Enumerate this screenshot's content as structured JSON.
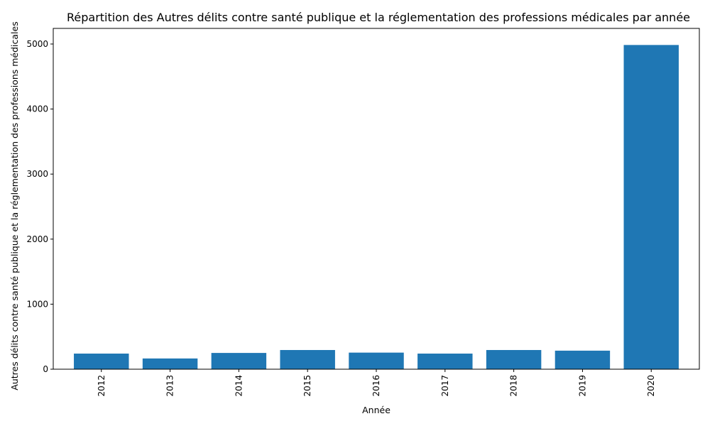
{
  "chart_data": {
    "type": "bar",
    "title": "Répartition des Autres délits contre santé publique et la réglementation des professions médicales par année",
    "xlabel": "Année",
    "ylabel": "Autres délits contre santé publique et la réglementation des professions médicales",
    "categories": [
      "2012",
      "2013",
      "2014",
      "2015",
      "2016",
      "2017",
      "2018",
      "2019",
      "2020"
    ],
    "values": [
      240,
      165,
      250,
      295,
      255,
      240,
      295,
      285,
      4985
    ],
    "ylim": [
      0,
      5240
    ],
    "yticks": [
      0,
      1000,
      2000,
      3000,
      4000,
      5000
    ],
    "bar_color": "#1f77b4",
    "grid": false,
    "legend": "none"
  }
}
